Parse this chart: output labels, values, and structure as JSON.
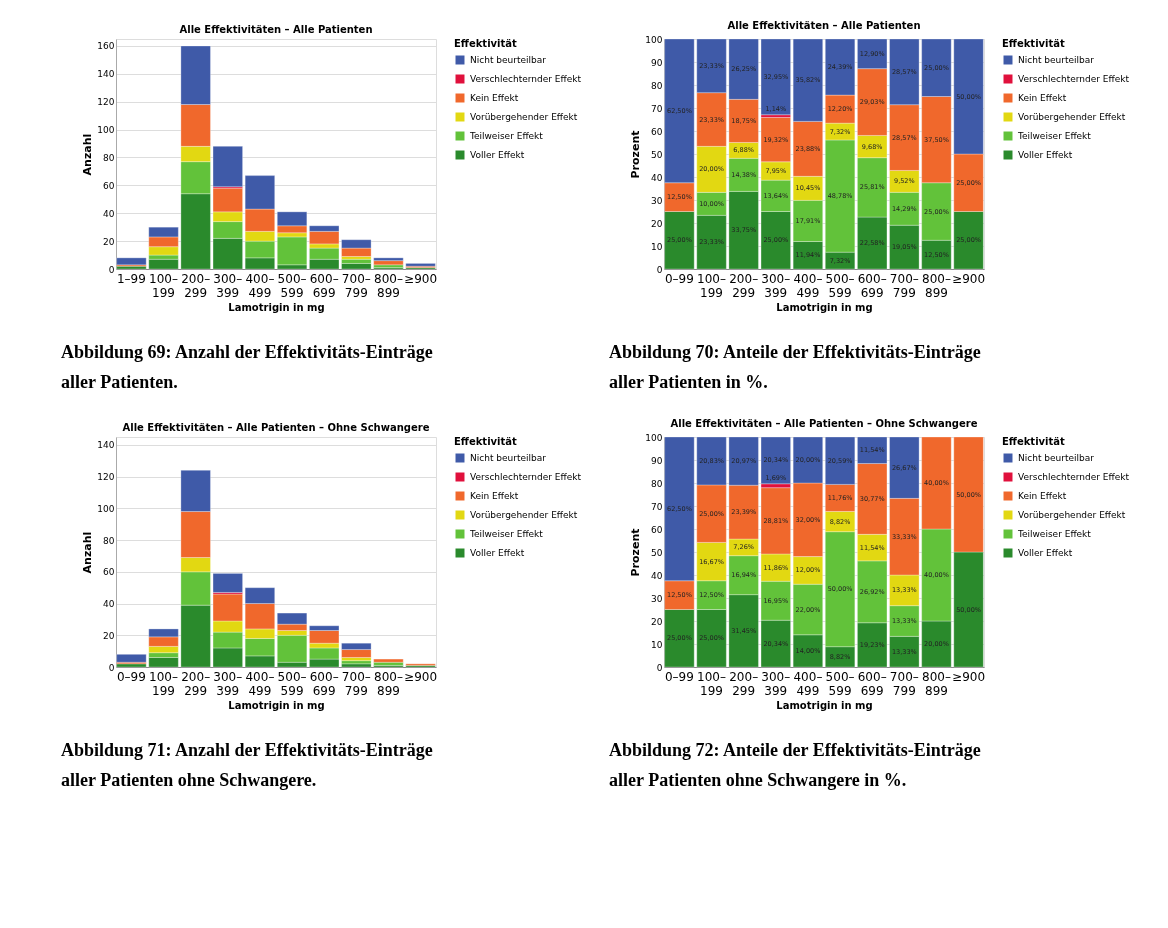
{
  "chart_data": [
    {
      "type": "bar",
      "stacked": true,
      "title": "Alle Effektivitäten – Alle Patienten",
      "xlabel": "Lamotrigin in mg",
      "ylabel": "Anzahl",
      "legend_title": "Effektivität",
      "legend": "right",
      "grid": "y",
      "categories": [
        "1–99",
        "100–199",
        "200–299",
        "300–399",
        "400–499",
        "500–599",
        "600–699",
        "700–799",
        "800–899",
        "≥900"
      ],
      "ylim": [
        0,
        165
      ],
      "yticks": [
        0,
        20,
        40,
        60,
        80,
        100,
        120,
        140,
        160
      ],
      "series": [
        {
          "name": "Voller Effekt",
          "color": "#2a8a2c",
          "values": [
            2,
            7,
            54,
            22,
            8,
            3,
            7,
            4,
            1,
            1
          ]
        },
        {
          "name": "Teilweiser Effekt",
          "color": "#62c23a",
          "values": [
            null,
            3,
            23,
            12,
            12,
            20,
            8,
            3,
            2,
            null
          ]
        },
        {
          "name": "Vorübergehender Effekt",
          "color": "#e2d812",
          "values": [
            null,
            6,
            11,
            7,
            7,
            3,
            3,
            2,
            null,
            null
          ]
        },
        {
          "name": "Kein Effekt",
          "color": "#f0682c",
          "values": [
            1,
            7,
            30,
            17,
            16,
            5,
            9,
            6,
            3,
            1
          ]
        },
        {
          "name": "Verschlechternder Effekt",
          "color": "#e0103c",
          "values": [
            null,
            null,
            null,
            1,
            null,
            null,
            null,
            null,
            null,
            null
          ]
        },
        {
          "name": "Nicht beurteilbar",
          "color": "#3f5aa8",
          "values": [
            5,
            7,
            42,
            29,
            24,
            10,
            4,
            6,
            2,
            2
          ]
        }
      ],
      "annotations": [
        "Abbildung 69: Anzahl der Effektivitäts-Einträge aller Patienten."
      ]
    },
    {
      "type": "bar",
      "stacked": true,
      "title": "Alle Effektivitäten – Alle Patienten",
      "xlabel": "Lamotrigin in mg",
      "ylabel": "Prozent",
      "legend_title": "Effektivität",
      "legend": "right",
      "grid": "y",
      "categories": [
        "0–99",
        "100–199",
        "200–299",
        "300–399",
        "400–499",
        "500–599",
        "600–699",
        "700–799",
        "800–899",
        "≥900"
      ],
      "ylim": [
        0,
        100
      ],
      "yticks": [
        0,
        10,
        20,
        30,
        40,
        50,
        60,
        70,
        80,
        90,
        100
      ],
      "series": [
        {
          "name": "Voller Effekt",
          "color": "#2a8a2c",
          "values": [
            25.0,
            23.33,
            33.75,
            25.0,
            11.94,
            7.32,
            22.58,
            19.05,
            12.5,
            25.0
          ],
          "value_labels": [
            "25,00%",
            "23,33%",
            "33,75%",
            "25,00%",
            "11,94%",
            "7,32%",
            "22,58%",
            "19,05%",
            "12,50%",
            "25,00%"
          ]
        },
        {
          "name": "Teilweiser Effekt",
          "color": "#62c23a",
          "values": [
            null,
            10.0,
            14.38,
            13.64,
            17.91,
            48.78,
            25.81,
            14.29,
            25.0,
            null
          ],
          "value_labels": [
            null,
            "10,00%",
            "14,38%",
            "13,64%",
            "17,91%",
            "48,78%",
            "25,81%",
            "14,29%",
            "25,00%",
            null
          ]
        },
        {
          "name": "Vorübergehender Effekt",
          "color": "#e2d812",
          "values": [
            null,
            20.0,
            6.88,
            7.95,
            10.45,
            7.32,
            9.68,
            9.52,
            null,
            null
          ],
          "value_labels": [
            null,
            "20,00%",
            "6,88%",
            "7,95%",
            "10,45%",
            "7,32%",
            "9,68%",
            "9,52%",
            null,
            null
          ]
        },
        {
          "name": "Kein Effekt",
          "color": "#f0682c",
          "values": [
            12.5,
            23.33,
            18.75,
            19.32,
            23.88,
            12.2,
            29.03,
            28.57,
            37.5,
            25.0
          ],
          "value_labels": [
            "12,50%",
            "23,33%",
            "18,75%",
            "19,32%",
            "23,88%",
            "12,20%",
            "29,03%",
            "28,57%",
            "37,50%",
            "25,00%"
          ]
        },
        {
          "name": "Verschlechternder Effekt",
          "color": "#e0103c",
          "values": [
            null,
            null,
            null,
            1.14,
            null,
            null,
            null,
            null,
            null,
            null
          ],
          "value_labels": [
            null,
            null,
            null,
            "1,14%",
            null,
            null,
            null,
            null,
            null,
            null
          ]
        },
        {
          "name": "Nicht beurteilbar",
          "color": "#3f5aa8",
          "values": [
            62.5,
            23.33,
            26.25,
            32.95,
            35.82,
            24.39,
            12.9,
            28.57,
            25.0,
            50.0
          ],
          "value_labels": [
            "62,50%",
            "23,33%",
            "26,25%",
            "32,95%",
            "35,82%",
            "24,39%",
            "12,90%",
            "28,57%",
            "25,00%",
            "50,00%"
          ]
        }
      ],
      "annotations": [
        "Abbildung 70: Anteile der Effektivitäts-Einträge aller Patienten in %."
      ]
    },
    {
      "type": "bar",
      "stacked": true,
      "title": "Alle Effektivitäten – Alle Patienten – Ohne Schwangere",
      "xlabel": "Lamotrigin in mg",
      "ylabel": "Anzahl",
      "legend_title": "Effektivität",
      "legend": "right",
      "grid": "y",
      "categories": [
        "0–99",
        "100–199",
        "200–299",
        "300–399",
        "400–499",
        "500–599",
        "600–699",
        "700–799",
        "800–899",
        "≥900"
      ],
      "ylim": [
        0,
        145
      ],
      "yticks": [
        0,
        20,
        40,
        60,
        80,
        100,
        120,
        140
      ],
      "series": [
        {
          "name": "Voller Effekt",
          "color": "#2a8a2c",
          "values": [
            2,
            6,
            39,
            12,
            7,
            3,
            5,
            2,
            1,
            1
          ]
        },
        {
          "name": "Teilweiser Effekt",
          "color": "#62c23a",
          "values": [
            null,
            3,
            21,
            10,
            11,
            17,
            7,
            2,
            2,
            null
          ]
        },
        {
          "name": "Vorübergehender Effekt",
          "color": "#e2d812",
          "values": [
            null,
            4,
            9,
            7,
            6,
            3,
            3,
            2,
            null,
            null
          ]
        },
        {
          "name": "Kein Effekt",
          "color": "#f0682c",
          "values": [
            1,
            6,
            29,
            17,
            16,
            4,
            8,
            5,
            2,
            1
          ]
        },
        {
          "name": "Verschlechternder Effekt",
          "color": "#e0103c",
          "values": [
            null,
            null,
            null,
            1,
            null,
            null,
            null,
            null,
            null,
            null
          ]
        },
        {
          "name": "Nicht beurteilbar",
          "color": "#3f5aa8",
          "values": [
            5,
            5,
            26,
            12,
            10,
            7,
            3,
            4,
            null,
            null
          ]
        }
      ],
      "annotations": [
        "Abbildung 71: Anzahl der Effektivitäts-Einträge aller Patienten ohne Schwangere."
      ]
    },
    {
      "type": "bar",
      "stacked": true,
      "title": "Alle Effektivitäten – Alle Patienten – Ohne Schwangere",
      "xlabel": "Lamotrigin in mg",
      "ylabel": "Prozent",
      "legend_title": "Effektivität",
      "legend": "right",
      "grid": "y",
      "categories": [
        "0–99",
        "100–199",
        "200–299",
        "300–399",
        "400–499",
        "500–599",
        "600–699",
        "700–799",
        "800–899",
        "≥900"
      ],
      "ylim": [
        0,
        100
      ],
      "yticks": [
        0,
        10,
        20,
        30,
        40,
        50,
        60,
        70,
        80,
        90,
        100
      ],
      "series": [
        {
          "name": "Voller Effekt",
          "color": "#2a8a2c",
          "values": [
            25.0,
            25.0,
            31.45,
            20.34,
            14.0,
            8.82,
            19.23,
            13.33,
            20.0,
            50.0
          ],
          "value_labels": [
            "25,00%",
            "25,00%",
            "31,45%",
            "20,34%",
            "14,00%",
            "8,82%",
            "19,23%",
            "13,33%",
            "20,00%",
            "50,00%"
          ]
        },
        {
          "name": "Teilweiser Effekt",
          "color": "#62c23a",
          "values": [
            null,
            12.5,
            16.94,
            16.95,
            22.0,
            50.0,
            26.92,
            13.33,
            40.0,
            null
          ],
          "value_labels": [
            null,
            "12,50%",
            "16,94%",
            "16,95%",
            "22,00%",
            "50,00%",
            "26,92%",
            "13,33%",
            "40,00%",
            null
          ]
        },
        {
          "name": "Vorübergehender Effekt",
          "color": "#e2d812",
          "values": [
            null,
            16.67,
            7.26,
            11.86,
            12.0,
            8.82,
            11.54,
            13.33,
            null,
            null
          ],
          "value_labels": [
            null,
            "16,67%",
            "7,26%",
            "11,86%",
            "12,00%",
            "8,82%",
            "11,54%",
            "13,33%",
            null,
            null
          ]
        },
        {
          "name": "Kein Effekt",
          "color": "#f0682c",
          "values": [
            12.5,
            25.0,
            23.39,
            28.81,
            32.0,
            11.76,
            30.77,
            33.33,
            40.0,
            50.0
          ],
          "value_labels": [
            "12,50%",
            "25,00%",
            "23,39%",
            "28,81%",
            "32,00%",
            "11,76%",
            "30,77%",
            "33,33%",
            "40,00%",
            "50,00%"
          ]
        },
        {
          "name": "Verschlechternder Effekt",
          "color": "#e0103c",
          "values": [
            null,
            null,
            null,
            1.69,
            null,
            null,
            null,
            null,
            null,
            null
          ],
          "value_labels": [
            null,
            null,
            null,
            "1,69%",
            null,
            null,
            null,
            null,
            null,
            null
          ]
        },
        {
          "name": "Nicht beurteilbar",
          "color": "#3f5aa8",
          "values": [
            62.5,
            20.83,
            20.97,
            20.34,
            20.0,
            20.59,
            11.54,
            26.67,
            null,
            null
          ],
          "value_labels": [
            "62,50%",
            "20,83%",
            "20,97%",
            "20,34%",
            "20,00%",
            "20,59%",
            "11,54%",
            "26,67%",
            null,
            null
          ]
        }
      ],
      "annotations": [
        "Abbildung 72: Anteile der Effektivitäts-Einträge aller Patienten ohne Schwangere in %."
      ]
    }
  ]
}
